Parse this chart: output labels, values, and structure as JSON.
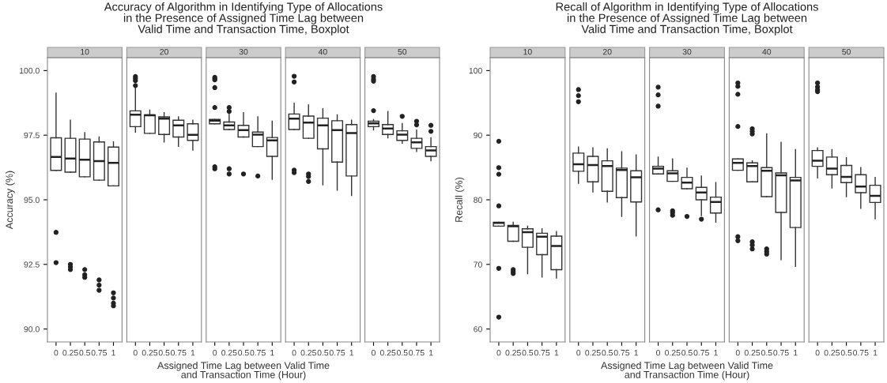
{
  "chart_data": [
    {
      "type": "box",
      "subtitle": "10",
      "ylabel": "Accuracy (%)",
      "categories": [
        "0",
        "0.25",
        "0.5",
        "0.75",
        "1"
      ],
      "ylim": [
        89.5,
        100.5
      ],
      "yticks": [
        {
          "value": 90,
          "label": "90.0"
        },
        {
          "value": 92.5,
          "label": "92.5"
        },
        {
          "value": 95,
          "label": "95.0"
        },
        {
          "value": 97.5,
          "label": "97.5"
        },
        {
          "value": 100,
          "label": "100.0"
        }
      ],
      "boxes": [
        {
          "low": 96.14,
          "q1": 96.14,
          "median": 96.66,
          "q3": 97.4,
          "high": 99.13,
          "outliers": [
            93.74,
            92.57
          ]
        },
        {
          "low": 96.07,
          "q1": 96.07,
          "median": 96.6,
          "q3": 97.38,
          "high": 98.08,
          "outliers": [
            92.5,
            92.4,
            92.3
          ]
        },
        {
          "low": 95.89,
          "q1": 95.89,
          "median": 96.55,
          "q3": 97.35,
          "high": 97.6,
          "outliers": [
            92.3,
            92.1,
            92.0
          ]
        },
        {
          "low": 95.76,
          "q1": 95.76,
          "median": 96.5,
          "q3": 97.24,
          "high": 97.43,
          "outliers": [
            91.9,
            91.7,
            91.5
          ]
        },
        {
          "low": 95.54,
          "q1": 95.54,
          "median": 96.43,
          "q3": 97.04,
          "high": 97.24,
          "outliers": [
            91.4,
            91.2,
            91.0,
            90.9
          ]
        }
      ]
    },
    {
      "type": "box",
      "subtitle": "20",
      "categories": [
        "0",
        "0.25",
        "0.5",
        "0.75",
        "1"
      ],
      "ylim": [
        89.5,
        100.5
      ],
      "tick_labels": "x",
      "boxes": [
        {
          "low": 97.62,
          "q1": 97.83,
          "median": 98.29,
          "q3": 98.44,
          "high": 99.34,
          "outliers": [
            99.77,
            99.69,
            99.61,
            99.42
          ]
        },
        {
          "low": 97.57,
          "q1": 97.57,
          "median": 98.27,
          "q3": 98.29,
          "high": 98.47
        },
        {
          "low": 97.24,
          "q1": 97.53,
          "median": 98.14,
          "q3": 98.21,
          "high": 98.37
        },
        {
          "low": 97.07,
          "q1": 97.43,
          "median": 97.88,
          "q3": 98.08,
          "high": 98.21
        },
        {
          "low": 96.92,
          "q1": 97.3,
          "median": 97.51,
          "q3": 97.94,
          "high": 98.08
        }
      ]
    },
    {
      "type": "box",
      "title": "Accuracy of Algorithm in Identifying Type of Allocations\nin the Presence of Assigned Time Lag between\nValid Time and Transaction Time, Boxplot",
      "subtitle": "30",
      "xlabel": "Assigned Time Lag between Valid Time\nand Transaction Time (Hour)",
      "categories": [
        "0",
        "0.25",
        "0.5",
        "0.75",
        "1"
      ],
      "ylim": [
        89.5,
        100.5
      ],
      "tick_labels": "x",
      "boxes": [
        {
          "low": 97.94,
          "q1": 97.94,
          "median": 98.06,
          "q3": 98.11,
          "high": 98.11,
          "outliers": [
            99.74,
            99.69,
            99.64,
            99.34,
            98.57,
            96.28,
            96.2
          ]
        },
        {
          "low": 97.72,
          "q1": 97.72,
          "median": 97.88,
          "q3": 98.01,
          "high": 98.3,
          "outliers": [
            98.57,
            98.42,
            96.2,
            96.0
          ]
        },
        {
          "low": 97.43,
          "q1": 97.43,
          "median": 97.7,
          "q3": 97.88,
          "high": 98.37,
          "outliers": [
            96.0
          ]
        },
        {
          "low": 97.06,
          "q1": 97.06,
          "median": 97.52,
          "q3": 97.62,
          "high": 98.21,
          "outliers": [
            95.92
          ]
        },
        {
          "low": 95.79,
          "q1": 96.68,
          "median": 97.3,
          "q3": 97.41,
          "high": 98.04
        }
      ]
    },
    {
      "type": "box",
      "subtitle": "40",
      "categories": [
        "0",
        "0.25",
        "0.5",
        "0.75",
        "1"
      ],
      "ylim": [
        89.5,
        100.5
      ],
      "tick_labels": "x",
      "boxes": [
        {
          "low": 97.72,
          "q1": 97.72,
          "median": 98.14,
          "q3": 98.32,
          "high": 98.74,
          "outliers": [
            99.78,
            99.56,
            96.15,
            96.05
          ]
        },
        {
          "low": 97.38,
          "q1": 97.38,
          "median": 97.99,
          "q3": 98.24,
          "high": 98.67,
          "outliers": [
            96.0,
            95.9,
            95.71
          ]
        },
        {
          "low": 95.58,
          "q1": 96.97,
          "median": 97.88,
          "q3": 98.16,
          "high": 98.52
        },
        {
          "low": 95.37,
          "q1": 96.46,
          "median": 97.7,
          "q3": 98.06,
          "high": 98.29
        },
        {
          "low": 95.17,
          "q1": 95.92,
          "median": 97.58,
          "q3": 97.91,
          "high": 98.08
        }
      ]
    },
    {
      "type": "box",
      "subtitle": "50",
      "categories": [
        "0",
        "0.25",
        "0.5",
        "0.75",
        "1"
      ],
      "ylim": [
        89.5,
        100.5
      ],
      "tick_labels": "x",
      "boxes": [
        {
          "low": 97.7,
          "q1": 97.83,
          "median": 97.96,
          "q3": 98.04,
          "high": 98.1,
          "outliers": [
            99.77,
            99.67,
            99.59,
            98.45
          ]
        },
        {
          "low": 97.4,
          "q1": 97.53,
          "median": 97.76,
          "q3": 97.91,
          "high": 98.42
        },
        {
          "low": 97.19,
          "q1": 97.3,
          "median": 97.52,
          "q3": 97.67,
          "high": 97.95,
          "outliers": [
            98.23
          ]
        },
        {
          "low": 96.87,
          "q1": 96.99,
          "median": 97.22,
          "q3": 97.38,
          "high": 97.7,
          "outliers": [
            98.04,
            97.9
          ]
        },
        {
          "low": 96.51,
          "q1": 96.68,
          "median": 96.91,
          "q3": 97.06,
          "high": 97.4,
          "outliers": [
            97.88,
            97.65
          ]
        }
      ]
    },
    {
      "type": "box",
      "subtitle": "10",
      "ylabel": "Recall (%)",
      "categories": [
        "0",
        "0.25",
        "0.5",
        "0.75",
        "1"
      ],
      "ylim": [
        58,
        102
      ],
      "yticks": [
        60,
        70,
        80,
        90,
        100
      ],
      "boxes": [
        {
          "low": 75.92,
          "q1": 75.92,
          "median": 76.41,
          "q3": 76.53,
          "high": 76.53,
          "outliers": [
            89.06,
            84.98,
            83.96,
            79.06,
            69.39,
            61.84
          ]
        },
        {
          "low": 73.59,
          "q1": 73.59,
          "median": 75.92,
          "q3": 76.04,
          "high": 76.53,
          "outliers": [
            69.2,
            68.9,
            68.6
          ]
        },
        {
          "low": 68.57,
          "q1": 72.65,
          "median": 74.98,
          "q3": 75.51,
          "high": 75.92
        },
        {
          "low": 68.04,
          "q1": 71.51,
          "median": 74.29,
          "q3": 74.82,
          "high": 75.51
        },
        {
          "low": 67.88,
          "q1": 69.18,
          "median": 72.86,
          "q3": 74.37,
          "high": 75.1
        }
      ]
    },
    {
      "type": "box",
      "subtitle": "20",
      "categories": [
        "0",
        "0.25",
        "0.5",
        "0.75",
        "1"
      ],
      "ylim": [
        58,
        102
      ],
      "tick_labels": "x",
      "boxes": [
        {
          "low": 82.57,
          "q1": 84.41,
          "median": 85.51,
          "q3": 87.22,
          "high": 88.16,
          "outliers": [
            97.06,
            96.12,
            95.18
          ]
        },
        {
          "low": 81.22,
          "q1": 82.78,
          "median": 85.39,
          "q3": 86.73,
          "high": 88.04
        },
        {
          "low": 79.67,
          "q1": 81.31,
          "median": 85.22,
          "q3": 86.04,
          "high": 87.88
        },
        {
          "low": 77.43,
          "q1": 80.33,
          "median": 84.61,
          "q3": 84.9,
          "high": 87.43
        },
        {
          "low": 74.41,
          "q1": 79.67,
          "median": 83.47,
          "q3": 84.49,
          "high": 86.94
        }
      ]
    },
    {
      "type": "box",
      "title": "Recall of Algorithm in Identifying Type of Allocations\nin the Presence of Assigned Time Lag between\nValid Time and Transaction Time, Boxplot",
      "subtitle": "30",
      "xlabel": "Assigned Time Lag between Valid Time\nand Transaction Time (Hour)",
      "categories": [
        "0",
        "0.25",
        "0.5",
        "0.75",
        "1"
      ],
      "ylim": [
        58,
        102
      ],
      "tick_labels": "x",
      "boxes": [
        {
          "low": 84.0,
          "q1": 84.0,
          "median": 84.82,
          "q3": 85.18,
          "high": 86.61,
          "outliers": [
            97.43,
            96.24,
            94.49,
            78.45
          ]
        },
        {
          "low": 82.86,
          "q1": 82.86,
          "median": 84.08,
          "q3": 84.49,
          "high": 86.33,
          "outliers": [
            78.3,
            78.0,
            77.6
          ]
        },
        {
          "low": 81.71,
          "q1": 81.71,
          "median": 82.65,
          "q3": 83.47,
          "high": 84.9,
          "outliers": [
            77.43
          ]
        },
        {
          "low": 77.55,
          "q1": 80.0,
          "median": 81.14,
          "q3": 81.92,
          "high": 83.67,
          "outliers": [
            77.0
          ]
        },
        {
          "low": 76.53,
          "q1": 77.96,
          "median": 79.67,
          "q3": 80.41,
          "high": 82.65
        }
      ]
    },
    {
      "type": "box",
      "subtitle": "40",
      "categories": [
        "0",
        "0.25",
        "0.5",
        "0.75",
        "1"
      ],
      "ylim": [
        58,
        102
      ],
      "tick_labels": "x",
      "boxes": [
        {
          "low": 84.57,
          "q1": 84.57,
          "median": 85.71,
          "q3": 86.33,
          "high": 86.33,
          "outliers": [
            98.08,
            97.55,
            96.33,
            91.35,
            74.29,
            73.67
          ]
        },
        {
          "low": 82.78,
          "q1": 82.78,
          "median": 85.22,
          "q3": 85.71,
          "high": 86.04,
          "outliers": [
            91.0,
            90.6,
            90.2,
            73.5,
            73.0,
            72.4
          ]
        },
        {
          "low": 80.49,
          "q1": 80.49,
          "median": 84.49,
          "q3": 84.98,
          "high": 90.2,
          "outliers": [
            72.4,
            72.0,
            71.6
          ]
        },
        {
          "low": 70.73,
          "q1": 78.04,
          "median": 83.8,
          "q3": 84.16,
          "high": 88.9
        },
        {
          "low": 69.71,
          "q1": 75.71,
          "median": 82.98,
          "q3": 83.47,
          "high": 87.76
        }
      ]
    },
    {
      "type": "box",
      "subtitle": "50",
      "categories": [
        "0",
        "0.25",
        "0.5",
        "0.75",
        "1"
      ],
      "ylim": [
        58,
        102
      ],
      "tick_labels": "x",
      "boxes": [
        {
          "low": 83.39,
          "q1": 85.18,
          "median": 86.04,
          "q3": 87.63,
          "high": 88.04,
          "outliers": [
            98.08,
            97.47,
            97.02,
            96.73
          ]
        },
        {
          "low": 81.84,
          "q1": 83.88,
          "median": 84.82,
          "q3": 86.61,
          "high": 87.76
        },
        {
          "low": 80.49,
          "q1": 82.65,
          "median": 83.55,
          "q3": 85.31,
          "high": 86.53
        },
        {
          "low": 78.69,
          "q1": 81.1,
          "median": 82.04,
          "q3": 83.88,
          "high": 84.98
        },
        {
          "low": 77.06,
          "q1": 79.59,
          "median": 80.61,
          "q3": 82.24,
          "high": 83.47
        }
      ]
    }
  ]
}
